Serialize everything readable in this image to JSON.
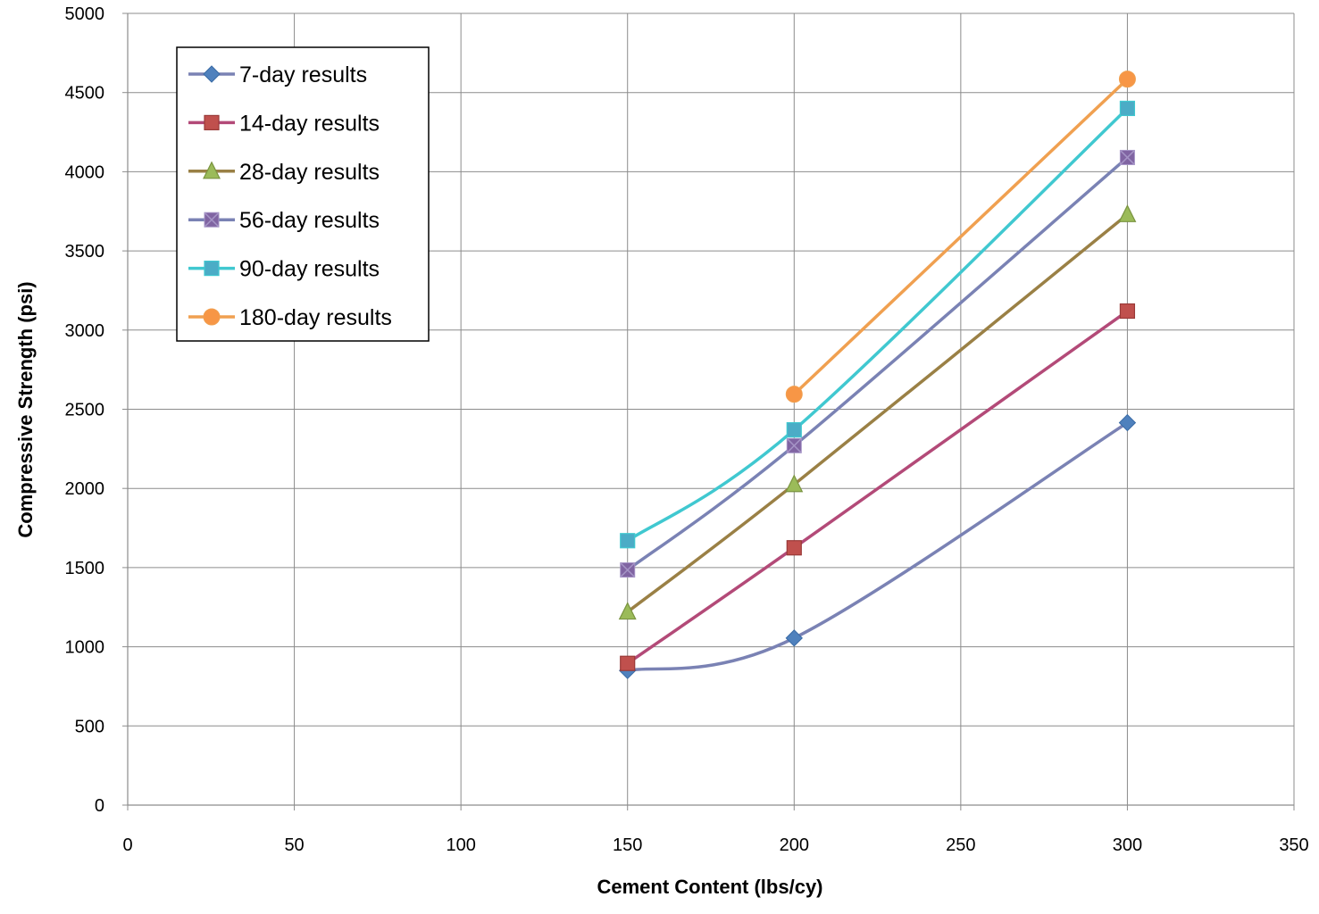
{
  "chart_data": {
    "type": "line",
    "title": "",
    "xlabel": "Cement Content (lbs/cy)",
    "ylabel": "Compressive Strength (psi)",
    "xlim": [
      0,
      350
    ],
    "ylim": [
      0,
      5000
    ],
    "x_ticks": [
      0,
      50,
      100,
      150,
      200,
      250,
      300,
      350
    ],
    "y_ticks": [
      0,
      500,
      1000,
      1500,
      2000,
      2500,
      3000,
      3500,
      4000,
      4500,
      5000
    ],
    "grid": true,
    "smooth": true,
    "legend_position": "top-left",
    "series": [
      {
        "name": "7-day results",
        "color": "#7A82B4",
        "marker": "diamond",
        "marker_fill": "#4F81BD",
        "marker_stroke": "#3A6BA5",
        "x": [
          150,
          200,
          300
        ],
        "y": [
          850,
          1055,
          2415
        ]
      },
      {
        "name": "14-day results",
        "color": "#B34A78",
        "marker": "square",
        "marker_fill": "#C0504D",
        "marker_stroke": "#9A3A38",
        "x": [
          150,
          200,
          300
        ],
        "y": [
          895,
          1625,
          3120
        ]
      },
      {
        "name": "28-day results",
        "color": "#9A8045",
        "marker": "triangle",
        "marker_fill": "#9BBB59",
        "marker_stroke": "#7A9440",
        "x": [
          150,
          200,
          300
        ],
        "y": [
          1220,
          2025,
          3730
        ]
      },
      {
        "name": "56-day results",
        "color": "#7A82B4",
        "marker": "square-x",
        "marker_fill": "#8064A2",
        "marker_stroke": "#A594C6",
        "x": [
          150,
          200,
          300
        ],
        "y": [
          1485,
          2270,
          4090
        ]
      },
      {
        "name": "90-day results",
        "color": "#40C8D0",
        "marker": "square",
        "marker_fill": "#4BACC6",
        "marker_stroke": "#40C8D0",
        "x": [
          150,
          200,
          300
        ],
        "y": [
          1670,
          2370,
          4400
        ]
      },
      {
        "name": "180-day results",
        "color": "#F0A050",
        "marker": "circle",
        "marker_fill": "#F79646",
        "marker_stroke": "#F0A050",
        "x": [
          200,
          300
        ],
        "y": [
          2595,
          4585
        ]
      }
    ]
  }
}
